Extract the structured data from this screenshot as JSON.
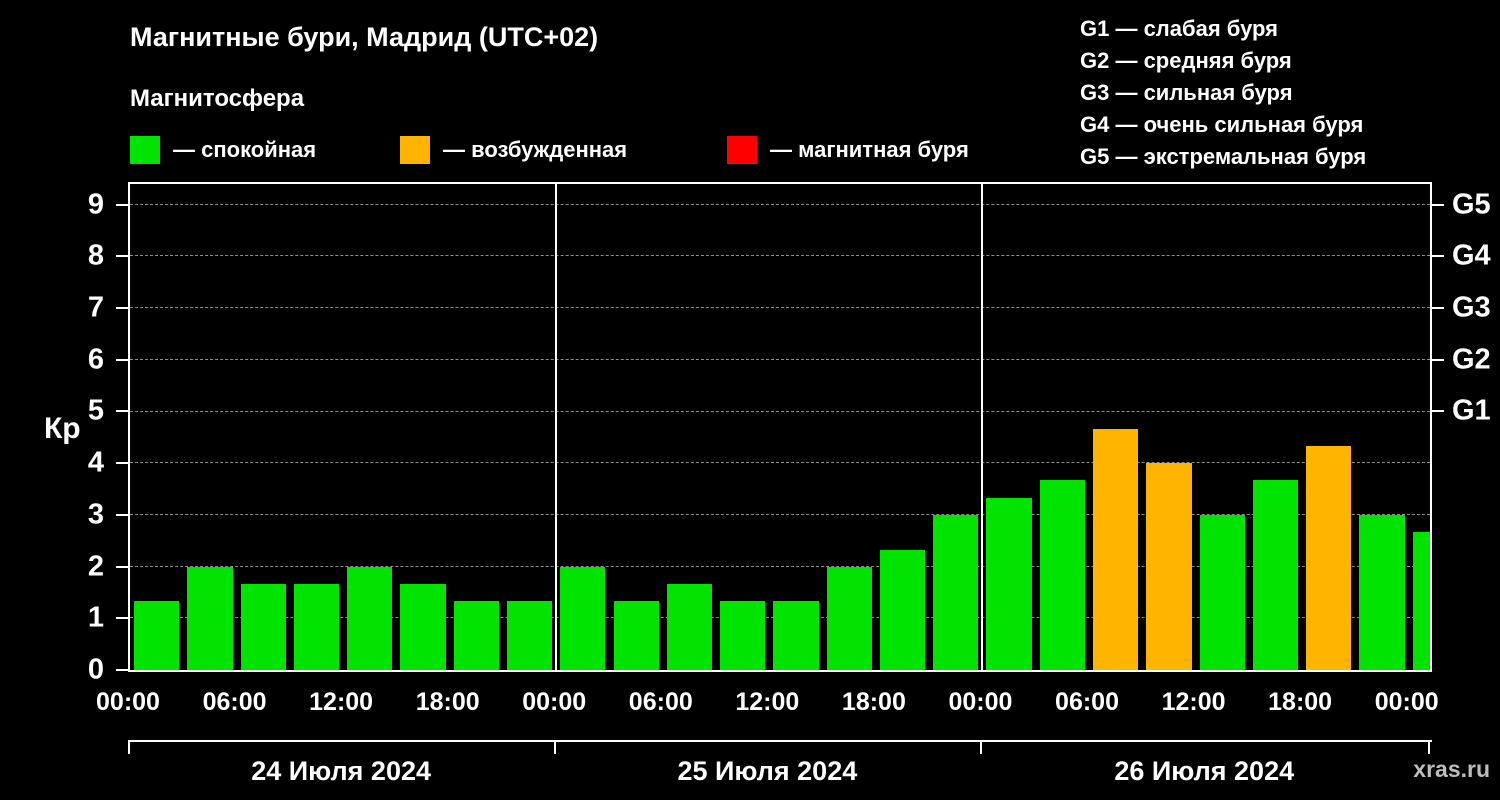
{
  "chart_data": {
    "type": "bar",
    "title": "Магнитные бури, Мадрид (UTC+02)",
    "subtitle": "Магнитосфера",
    "ylabel": "Кр",
    "ylim": [
      0,
      9.4
    ],
    "y_ticks": [
      0,
      1,
      2,
      3,
      4,
      5,
      6,
      7,
      8,
      9
    ],
    "grid": true,
    "legend": {
      "items": [
        {
          "label": "— спокойная",
          "color": "#00e400"
        },
        {
          "label": "— возбужденная",
          "color": "#ffb400"
        },
        {
          "label": "— магнитная буря",
          "color": "#ff0000"
        }
      ]
    },
    "g_scale_legend": [
      "G1 — слабая буря",
      "G2 — средняя буря",
      "G3 — сильная буря",
      "G4 — очень сильная буря",
      "G5 — экстремальная буря"
    ],
    "right_axis": [
      {
        "kp": 5,
        "label": "G1"
      },
      {
        "kp": 6,
        "label": "G2"
      },
      {
        "kp": 7,
        "label": "G3"
      },
      {
        "kp": 8,
        "label": "G4"
      },
      {
        "kp": 9,
        "label": "G5"
      }
    ],
    "bar_interval_hours": 3,
    "total_slots": 24.4,
    "day_boundaries_slots": [
      0,
      8,
      16,
      24.4
    ],
    "x_time_labels": [
      "00:00",
      "06:00",
      "12:00",
      "18:00",
      "00:00",
      "06:00",
      "12:00",
      "18:00",
      "00:00",
      "06:00",
      "12:00",
      "18:00",
      "00:00"
    ],
    "day_labels": [
      "24 Июля 2024",
      "25 Июля 2024",
      "26 Июля 2024"
    ],
    "color_thresholds": {
      "excited_min": 4,
      "storm_min": 5
    },
    "values": [
      1.33,
      2,
      1.67,
      1.67,
      2,
      1.67,
      1.33,
      1.33,
      2,
      1.33,
      1.67,
      1.33,
      1.33,
      2,
      2.33,
      3,
      3.33,
      3.67,
      4.67,
      4,
      3,
      3.67,
      4.33,
      3,
      2.67
    ],
    "partial_last_bar": true
  },
  "watermark": "xras.ru"
}
